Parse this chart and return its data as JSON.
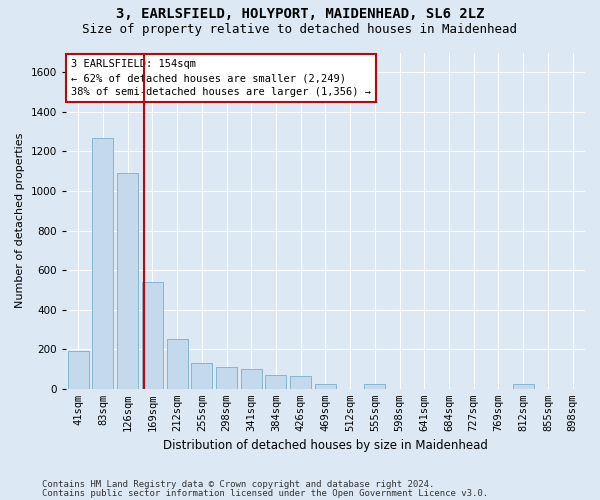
{
  "title": "3, EARLSFIELD, HOLYPORT, MAIDENHEAD, SL6 2LZ",
  "subtitle": "Size of property relative to detached houses in Maidenhead",
  "xlabel": "Distribution of detached houses by size in Maidenhead",
  "ylabel": "Number of detached properties",
  "footer_line1": "Contains HM Land Registry data © Crown copyright and database right 2024.",
  "footer_line2": "Contains public sector information licensed under the Open Government Licence v3.0.",
  "bar_labels": [
    "41sqm",
    "83sqm",
    "126sqm",
    "169sqm",
    "212sqm",
    "255sqm",
    "298sqm",
    "341sqm",
    "384sqm",
    "426sqm",
    "469sqm",
    "512sqm",
    "555sqm",
    "598sqm",
    "641sqm",
    "684sqm",
    "727sqm",
    "769sqm",
    "812sqm",
    "855sqm",
    "898sqm"
  ],
  "bar_values": [
    190,
    1270,
    1090,
    540,
    250,
    130,
    110,
    100,
    70,
    65,
    25,
    0,
    25,
    0,
    0,
    0,
    0,
    0,
    25,
    0,
    0
  ],
  "bar_color": "#c5d9ec",
  "bar_edgecolor": "#7aaec8",
  "property_label": "3 EARLSFIELD: 154sqm",
  "annotation_line1": "← 62% of detached houses are smaller (2,249)",
  "annotation_line2": "38% of semi-detached houses are larger (1,356) →",
  "vline_color": "#cc0000",
  "vline_position": 2.65,
  "annotation_box_facecolor": "#ffffff",
  "annotation_box_edgecolor": "#cc0000",
  "ylim": [
    0,
    1700
  ],
  "yticks": [
    0,
    200,
    400,
    600,
    800,
    1000,
    1200,
    1400,
    1600
  ],
  "bg_color": "#dce9f5",
  "grid_color": "#ffffff",
  "title_fontsize": 10,
  "subtitle_fontsize": 9,
  "ylabel_fontsize": 8,
  "xlabel_fontsize": 8.5,
  "tick_fontsize": 7.5,
  "footer_fontsize": 6.5
}
